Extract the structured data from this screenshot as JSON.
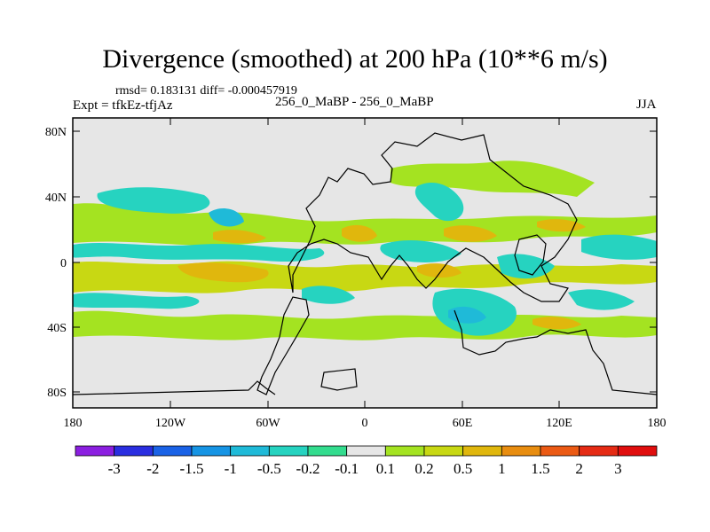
{
  "title": "Divergence (smoothed) at 200 hPa (10**6 m/s)",
  "stats": "rmsd= 0.183131 diff= -0.000457919",
  "expt": "Expt = tfkEz-tfjAz",
  "case": "256_0_MaBP - 256_0_MaBP",
  "season": "JJA",
  "map": {
    "lat_ticks": [
      "80N",
      "40N",
      "0",
      "40S",
      "80S"
    ],
    "lon_ticks": [
      "180",
      "120W",
      "60W",
      "0",
      "60E",
      "120E",
      "180"
    ]
  },
  "colorbar": {
    "labels": [
      "-3",
      "-2",
      "-1.5",
      "-1",
      "-0.5",
      "-0.2",
      "-0.1",
      "0.1",
      "0.2",
      "0.5",
      "1",
      "1.5",
      "2",
      "3"
    ],
    "colors": [
      "#8b1fe0",
      "#2a2ee0",
      "#1a62e6",
      "#1694e4",
      "#1fbad8",
      "#26d3c0",
      "#33dc8e",
      "#e6e6e6",
      "#a4e321",
      "#c8d813",
      "#e0b70d",
      "#e88d10",
      "#eb5a14",
      "#e52b14",
      "#e00e0e"
    ]
  }
}
